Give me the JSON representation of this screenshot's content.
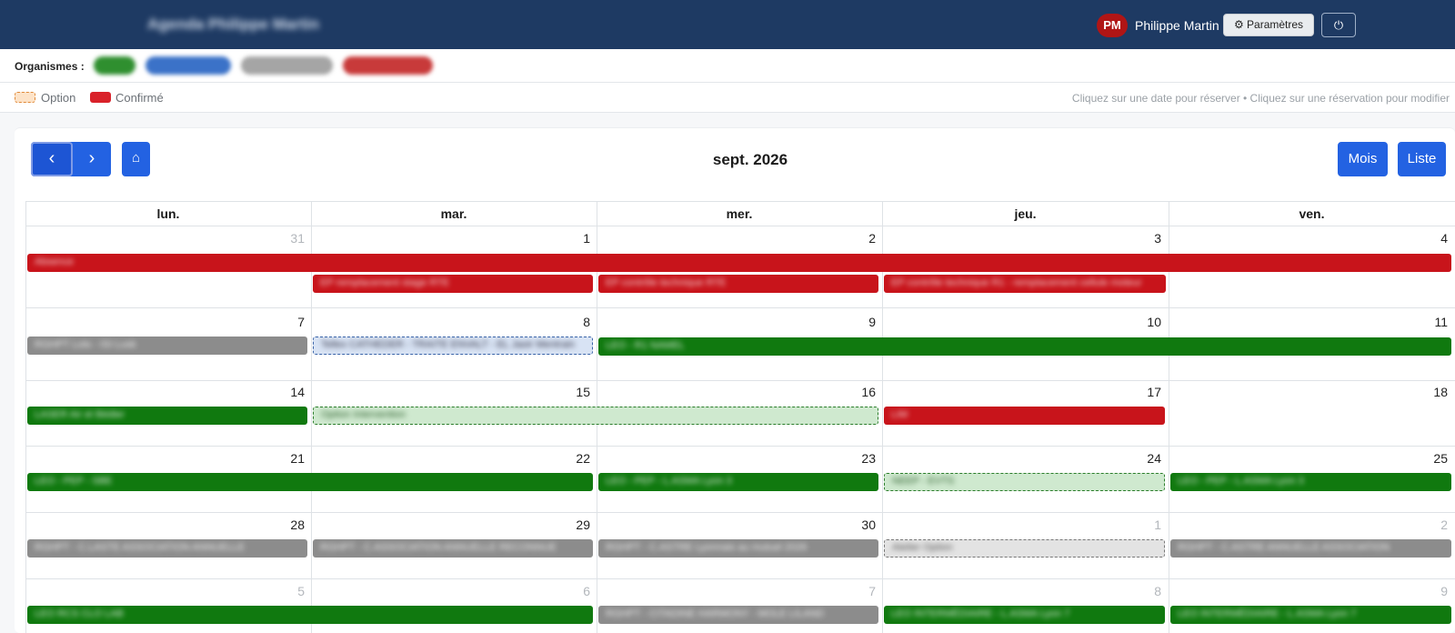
{
  "header": {
    "app_title": "Agenda Philippe Martin",
    "avatar_initials": "PM",
    "user_name": "Philippe Martin",
    "settings_label": "⚙ Paramètres",
    "power_symbol": "⏻"
  },
  "organisms": {
    "label": "Organismes :",
    "items": [
      {
        "name": "LEO",
        "color": "#2f8f2f"
      },
      {
        "name": "Lab Mondo",
        "color": "#3b72c8"
      },
      {
        "name": "Lab Médecin",
        "color": "#a5a5a5"
      },
      {
        "name": "Philips Asso",
        "color": "#c83a3a"
      }
    ]
  },
  "legend": {
    "option_label": "Option",
    "confirmed_label": "Confirmé",
    "help": "Cliquez sur une date pour réserver • Cliquez sur une réservation pour modifier"
  },
  "toolbar": {
    "prev_symbol": "‹",
    "next_symbol": "›",
    "home_symbol": "⌂",
    "month_title": "sept. 2026",
    "view_month": "Mois",
    "view_list": "Liste"
  },
  "weekdays": [
    "lun.",
    "mar.",
    "mer.",
    "jeu.",
    "ven."
  ],
  "weeks": [
    [
      "31",
      "1",
      "2",
      "3",
      "4"
    ],
    [
      "7",
      "8",
      "9",
      "10",
      "11"
    ],
    [
      "14",
      "15",
      "16",
      "17",
      "18"
    ],
    [
      "21",
      "22",
      "23",
      "24",
      "25"
    ],
    [
      "28",
      "29",
      "30",
      "1",
      "2"
    ],
    [
      "5",
      "6",
      "7",
      "8",
      "9"
    ]
  ],
  "events": {
    "w1_all": "Absence",
    "w1_tue": "EP remplacement stage RTE",
    "w1_wed": "EP contrôle technique RTE",
    "w1_thu": "EP contrôle technique R1 - remplacement cellule moteur",
    "w2_mon": "RGHPT Lots - ISI Lusk",
    "w2_tue": "Tellex CATHEDER - TRAITE ENVALT - EL Jaoir Mentrain",
    "w2_wed_fri": "LEO - R1 NAMEL",
    "w3_mon": "LASER Air et Bédier",
    "w3_tue_wed": "Option Intervention",
    "w3_thu": "LIM",
    "w4_mon_tue": "LEO - PEP - SBE",
    "w4_wed": "LEO - PEP - L.ASMA Lyon 3",
    "w4_thu": "NEEP - EVTS",
    "w4_fri": "LEO - PEP - L.ASMA Lyon 3",
    "w5_mon": "RGHPT - C.LASTE ASSOCIATION ANNUELLE",
    "w5_tue": "RGHPT - C.ASSOCIATION ANNUELLE RECONNUE",
    "w5_wed": "RGHPT - C.ASTRE Lyonnais au mutuel 2026",
    "w5_thu": "Atelier Option",
    "w5_fri": "RGHPT - C.ASTRE ANNUELLE ASSOCIATION",
    "w6_mon_tue": "LEO RCS CLO LAB",
    "w6_wed": "RGHPT - CITADINE HARMONY - MOLE LILAND",
    "w6_thu": "LEO INTERMÉDIAIRE - L.ASMA Lyon 7",
    "w6_fri": "LEO INTERMÉDIAIRE - L.ASMA Lyon 7"
  }
}
